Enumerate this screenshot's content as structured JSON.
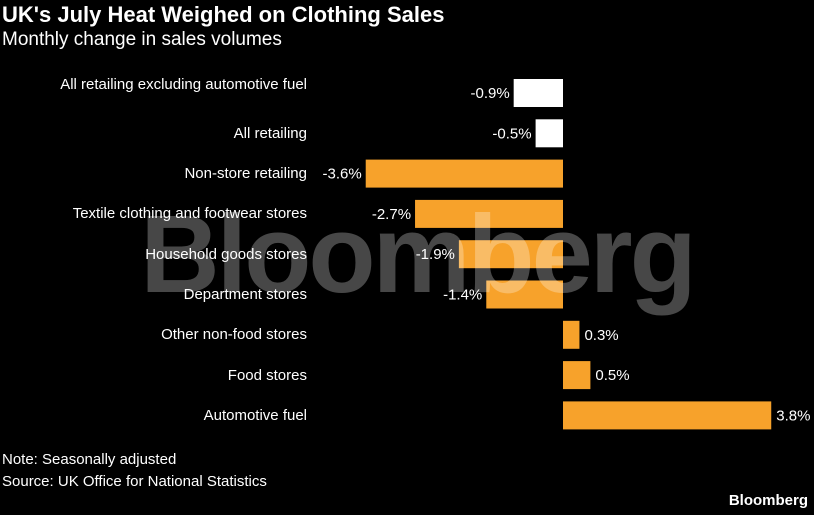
{
  "header": {
    "title": "UK's July Heat Weighed on Clothing Sales",
    "subtitle": "Monthly change in sales volumes"
  },
  "chart_data": {
    "type": "bar",
    "orientation": "horizontal",
    "categories": [
      "All retailing excluding automotive fuel",
      "All retailing",
      "Non-store retailing",
      "Textile clothing and footwear stores",
      "Household goods stores",
      "Department stores",
      "Other non-food stores",
      "Food stores",
      "Automotive fuel"
    ],
    "values": [
      -0.9,
      -0.5,
      -3.6,
      -2.7,
      -1.9,
      -1.4,
      0.3,
      0.5,
      3.8
    ],
    "value_labels": [
      "-0.9%",
      "-0.5%",
      "-3.6%",
      "-2.7%",
      "-1.9%",
      "-1.4%",
      "0.3%",
      "0.5%",
      "3.8%"
    ],
    "bar_colors": [
      "#ffffff",
      "#ffffff",
      "#f7a22b",
      "#f7a22b",
      "#f7a22b",
      "#f7a22b",
      "#f7a22b",
      "#f7a22b",
      "#f7a22b"
    ],
    "unit": "%",
    "grid": false,
    "legend": "none"
  },
  "footer": {
    "note": "Note: Seasonally adjusted",
    "source": "Source: UK Office for National Statistics",
    "brand": "Bloomberg",
    "watermark": "Bloomberg"
  },
  "colors": {
    "background": "#000000",
    "accent": "#f7a22b",
    "highlight": "#ffffff",
    "text": "#ffffff"
  }
}
